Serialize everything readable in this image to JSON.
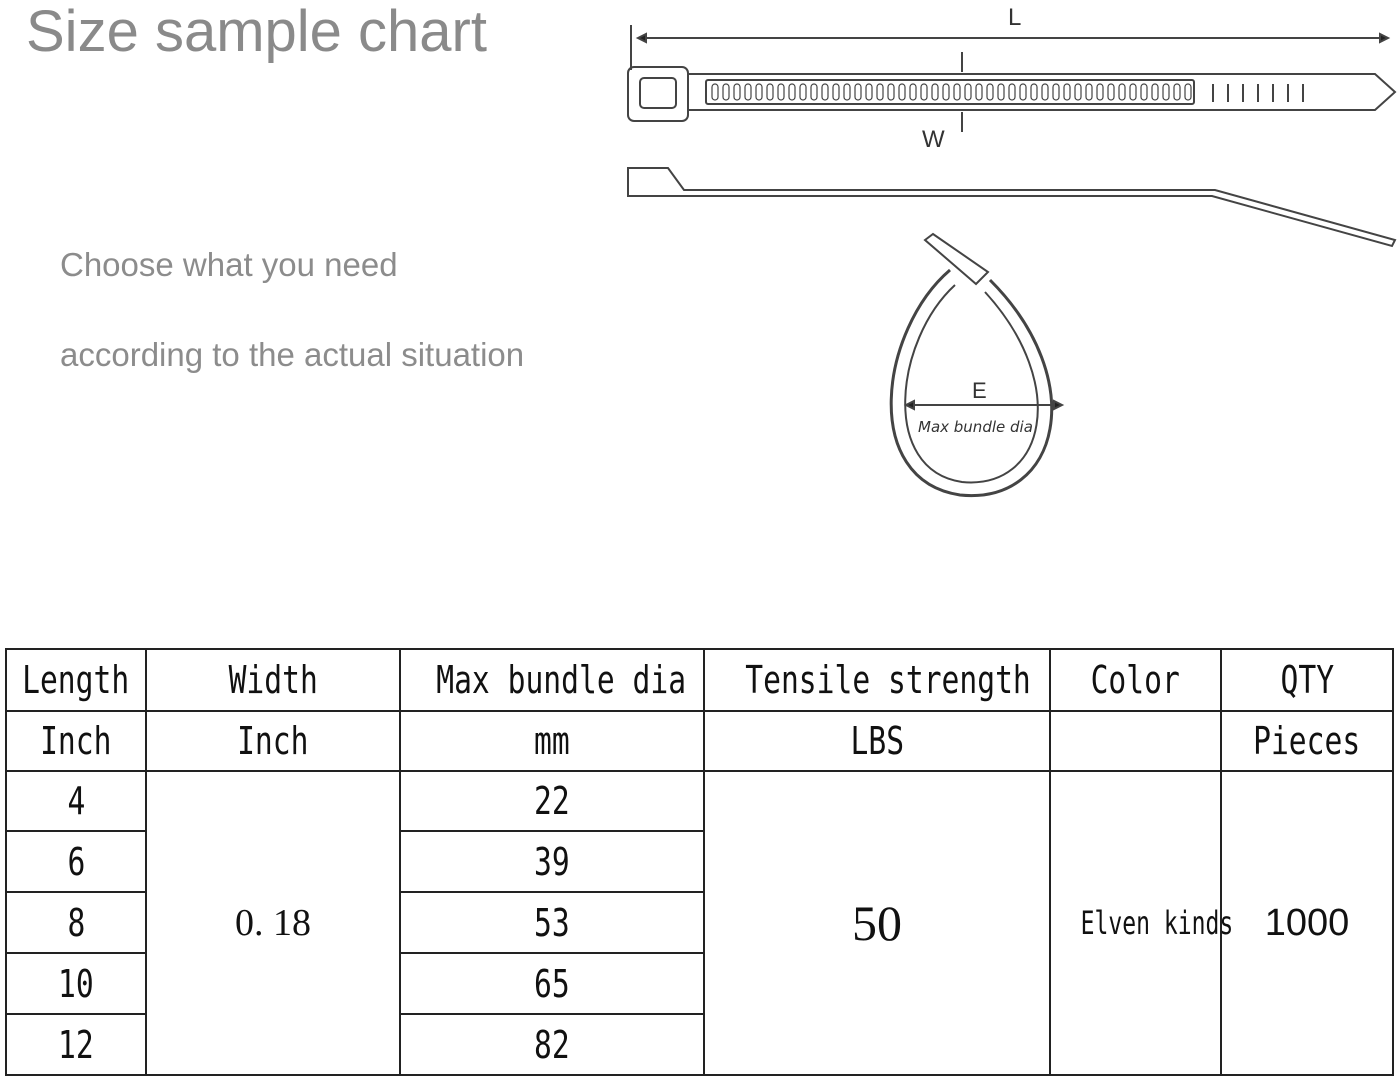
{
  "title": "Size sample chart",
  "subtitle_lines": [
    "Choose what you need",
    "according to the actual situation"
  ],
  "diagram": {
    "length_label": "L",
    "width_label": "W",
    "bundle_label": "E",
    "bundle_caption": "Max bundle dia"
  },
  "table": {
    "headers": [
      "Length",
      "Width",
      "Max bundle dia",
      "Tensile strength",
      "Color",
      "QTY"
    ],
    "units": [
      "Inch",
      "Inch",
      "mm",
      "LBS",
      "",
      "Pieces"
    ],
    "lengths": [
      "4",
      "6",
      "8",
      "10",
      "12"
    ],
    "width": "0. 18",
    "bundle_dias": [
      "22",
      "39",
      "53",
      "65",
      "82"
    ],
    "tensile": "50",
    "color": "Elven kinds",
    "qty": "1000"
  }
}
